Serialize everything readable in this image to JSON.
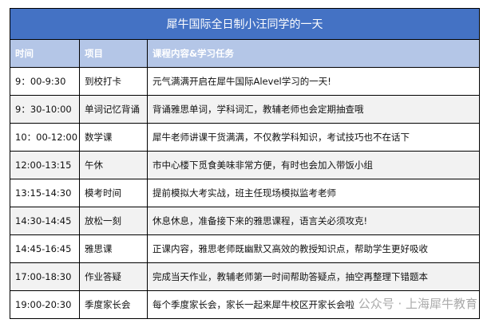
{
  "title": "犀牛国际全日制小汪同学的一天",
  "headers": [
    "时间",
    "项目",
    "课程内容&学习任务"
  ],
  "rows": [
    [
      "9：00-9:30",
      "到校打卡",
      "元气满满开启在犀牛国际Alevel学习的一天!"
    ],
    [
      "9：30-10:00",
      "单词记忆背诵",
      "背诵雅思单词，学科词汇，教辅老师也会定期抽查哦"
    ],
    [
      "10：00-12:00",
      "数学课",
      "犀牛老师讲课干货满满，不仅教学科知识，考试技巧也不在话下"
    ],
    [
      "12:00-13:15",
      "午休",
      "市中心楼下觅食美味非常方便，有时也会加入带饭小组"
    ],
    [
      "13:15-14:30",
      "模考时间",
      "提前模拟大考实战，班主任现场模拟监考老师"
    ],
    [
      "14:30-14:45",
      "放松一刻",
      "休息休息，准备接下来的雅思课程，语言关必须攻克!"
    ],
    [
      "14:45-16:45",
      "雅思课",
      "正课内容，雅思老师既幽默又高效的教授知识点，帮助学生更好吸收"
    ],
    [
      "17:00-18:30",
      "作业答疑",
      "完成当天作业，教辅老师第一时间帮助答疑点，抽空再整理下错题本"
    ],
    [
      "19:00-20:30",
      "季度家长会",
      "每个季度家长会，家长一起来犀牛校区开家长会啦"
    ]
  ],
  "watermark": "公众号 · 上海犀牛教育",
  "colors": {
    "title_bg": "#4472c4",
    "header_bg": "#b4c6e7",
    "alt_row": "#f2f2f2"
  }
}
